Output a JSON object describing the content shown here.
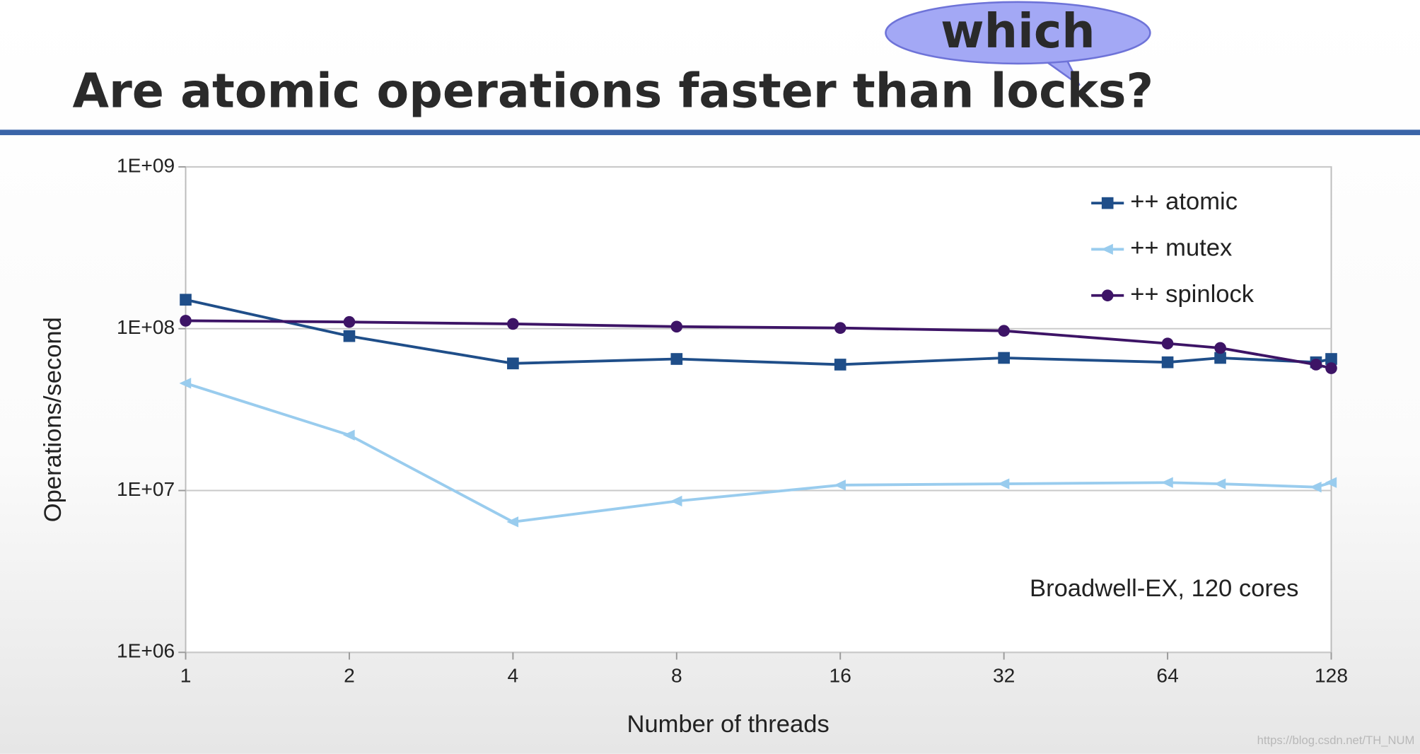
{
  "chart_data": {
    "type": "line",
    "title": "Are atomic operations faster than locks?",
    "callout": "which",
    "annotation": "Broadwell-EX, 120 cores",
    "watermark": "https://blog.csdn.net/TH_NUM",
    "x_label": "Number of threads",
    "y_label": "Operations/second",
    "x": [
      1,
      2,
      4,
      8,
      16,
      32,
      64,
      80,
      120,
      128
    ],
    "series": [
      {
        "name": "++ atomic",
        "color": "#1f4e89",
        "marker": "square",
        "values": [
          151000000,
          90000000,
          61000000,
          65000000,
          60000000,
          66000000,
          62000000,
          66000000,
          62000000,
          65000000
        ]
      },
      {
        "name": "++ mutex",
        "color": "#99ccee",
        "marker": "triangle-left",
        "values": [
          46000000,
          22000000,
          6400000,
          8600000,
          10800000,
          11000000,
          11200000,
          11000000,
          10500000,
          11200000
        ]
      },
      {
        "name": "++ spinlock",
        "color": "#3d1466",
        "marker": "circle",
        "values": [
          112000000,
          110000000,
          107000000,
          103000000,
          101000000,
          97000000,
          81000000,
          76000000,
          60000000,
          57000000
        ]
      }
    ],
    "xlim": [
      1,
      128
    ],
    "xticks": [
      1,
      2,
      4,
      8,
      16,
      32,
      64,
      128
    ],
    "ylim": [
      1000000,
      1000000000
    ],
    "yticks": [
      {
        "value": 1000000,
        "label": "1E+06"
      },
      {
        "value": 10000000,
        "label": "1E+07"
      },
      {
        "value": 100000000,
        "label": "1E+08"
      },
      {
        "value": 1000000000,
        "label": "1E+09"
      }
    ],
    "xscale": "log",
    "yscale": "log",
    "grid": true,
    "legend": "upper right"
  }
}
